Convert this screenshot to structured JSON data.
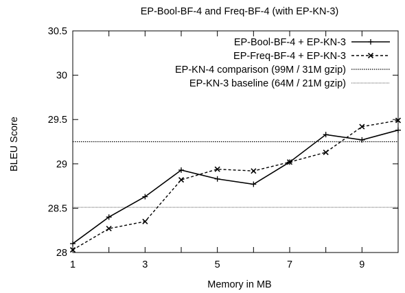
{
  "chart_data": {
    "type": "line",
    "title": "EP-Bool-BF-4 and Freq-BF-4 (with EP-KN-3)",
    "xlabel": "Memory in MB",
    "ylabel": "BLEU Score",
    "xlim": [
      1,
      10
    ],
    "ylim": [
      28,
      30.5
    ],
    "x_ticks": [
      "1",
      "3",
      "5",
      "7",
      "9"
    ],
    "y_ticks": [
      "28",
      "28.5",
      "29",
      "29.5",
      "30",
      "30.5"
    ],
    "grid": false,
    "legend_position": "top-right",
    "series": [
      {
        "name": "EP-Bool-BF-4 + EP-KN-3",
        "style": "solid",
        "marker": "plus",
        "x": [
          1,
          2,
          3,
          4,
          5,
          6,
          7,
          8,
          9,
          10
        ],
        "y": [
          28.1,
          28.4,
          28.63,
          28.93,
          28.83,
          28.77,
          29.02,
          29.33,
          29.27,
          29.38
        ]
      },
      {
        "name": "EP-Freq-BF-4 + EP-KN-3",
        "style": "dashed",
        "marker": "cross",
        "x": [
          1,
          2,
          3,
          4,
          5,
          6,
          7,
          8,
          9,
          10
        ],
        "y": [
          28.03,
          28.27,
          28.35,
          28.82,
          28.94,
          28.92,
          29.02,
          29.13,
          29.42,
          29.49
        ]
      }
    ],
    "reference_lines": [
      {
        "name": "EP-KN-4 comparison (99M / 31M gzip)",
        "style": "dotted",
        "y": 29.25
      },
      {
        "name": "EP-KN-3 baseline (64M / 21M gzip)",
        "style": "dotted-light",
        "y": 28.51
      }
    ]
  }
}
